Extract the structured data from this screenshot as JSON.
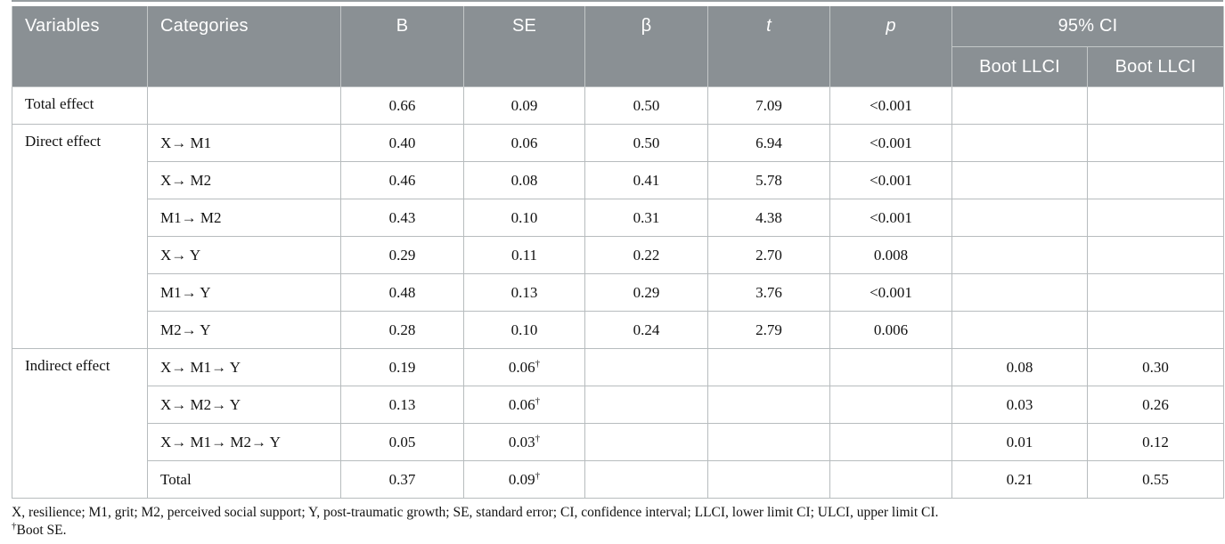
{
  "header": {
    "variables": "Variables",
    "categories": "Categories",
    "b": "B",
    "se": "SE",
    "beta": "β",
    "t": "t",
    "p": "p",
    "ci_group": "95% CI",
    "boot_llci_1": "Boot LLCI",
    "boot_llci_2": "Boot LLCI"
  },
  "sections": [
    {
      "variable": "Total effect",
      "rows": [
        {
          "category": "",
          "b": "0.66",
          "se": "0.09",
          "dagger": false,
          "beta": "0.50",
          "t": "7.09",
          "p": "<0.001",
          "boot_llci": "",
          "boot_ulci": ""
        }
      ]
    },
    {
      "variable": "Direct effect",
      "rows": [
        {
          "category": "X→ M1",
          "b": "0.40",
          "se": "0.06",
          "dagger": false,
          "beta": "0.50",
          "t": "6.94",
          "p": "<0.001",
          "boot_llci": "",
          "boot_ulci": ""
        },
        {
          "category": "X→ M2",
          "b": "0.46",
          "se": "0.08",
          "dagger": false,
          "beta": "0.41",
          "t": "5.78",
          "p": "<0.001",
          "boot_llci": "",
          "boot_ulci": ""
        },
        {
          "category": "M1→ M2",
          "b": "0.43",
          "se": "0.10",
          "dagger": false,
          "beta": "0.31",
          "t": "4.38",
          "p": "<0.001",
          "boot_llci": "",
          "boot_ulci": ""
        },
        {
          "category": "X→ Y",
          "b": "0.29",
          "se": "0.11",
          "dagger": false,
          "beta": "0.22",
          "t": "2.70",
          "p": "0.008",
          "boot_llci": "",
          "boot_ulci": ""
        },
        {
          "category": "M1→ Y",
          "b": "0.48",
          "se": "0.13",
          "dagger": false,
          "beta": "0.29",
          "t": "3.76",
          "p": "<0.001",
          "boot_llci": "",
          "boot_ulci": ""
        },
        {
          "category": "M2→ Y",
          "b": "0.28",
          "se": "0.10",
          "dagger": false,
          "beta": "0.24",
          "t": "2.79",
          "p": "0.006",
          "boot_llci": "",
          "boot_ulci": ""
        }
      ]
    },
    {
      "variable": "Indirect effect",
      "rows": [
        {
          "category": "X→ M1→ Y",
          "b": "0.19",
          "se": "0.06",
          "dagger": true,
          "beta": "",
          "t": "",
          "p": "",
          "boot_llci": "0.08",
          "boot_ulci": "0.30"
        },
        {
          "category": "X→ M2→ Y",
          "b": "0.13",
          "se": "0.06",
          "dagger": true,
          "beta": "",
          "t": "",
          "p": "",
          "boot_llci": "0.03",
          "boot_ulci": "0.26"
        },
        {
          "category": "X→ M1→ M2→ Y",
          "b": "0.05",
          "se": "0.03",
          "dagger": true,
          "beta": "",
          "t": "",
          "p": "",
          "boot_llci": "0.01",
          "boot_ulci": "0.12"
        },
        {
          "category": "Total",
          "b": "0.37",
          "se": "0.09",
          "dagger": true,
          "beta": "",
          "t": "",
          "p": "",
          "boot_llci": "0.21",
          "boot_ulci": "0.55"
        }
      ]
    }
  ],
  "footnotes": {
    "abbreviations": "X, resilience; M1, grit; M2, perceived social support; Y, post-traumatic growth; SE, standard error; CI, confidence interval; LLCI, lower limit CI; ULCI, upper limit CI.",
    "dagger_symbol": "†",
    "dagger_note": "Boot SE."
  },
  "colors": {
    "header_bg": "#8a9094",
    "header_text": "#ffffff",
    "body_border": "#b7bcbe",
    "body_text": "#111111",
    "top_rule": "#979da0"
  }
}
